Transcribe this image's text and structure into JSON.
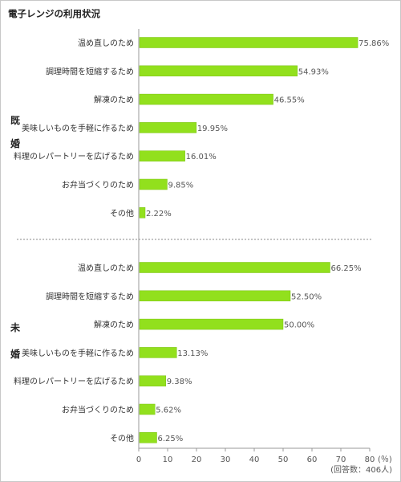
{
  "title": "電子レンジの利用状況",
  "unit_label": "(％)",
  "respondents_label": "(回答数：406人)",
  "chart_data": {
    "type": "bar",
    "orientation": "horizontal",
    "title": "電子レンジの利用状況",
    "categories": [
      "温め直しのため",
      "調理時間を短縮するため",
      "解凍のため",
      "美味しいものを手軽に作るため",
      "料理のレパートリーを広げるため",
      "お弁当づくりのため",
      "その他"
    ],
    "groups": [
      {
        "name": [
          "既",
          "婚"
        ],
        "values": [
          75.86,
          54.93,
          46.55,
          19.95,
          16.01,
          9.85,
          2.22
        ],
        "labels": [
          "75.86%",
          "54.93%",
          "46.55%",
          "19.95%",
          "16.01%",
          "9.85%",
          "2.22%"
        ]
      },
      {
        "name": [
          "未",
          "婚"
        ],
        "values": [
          66.25,
          52.5,
          50.0,
          13.13,
          9.38,
          5.62,
          6.25
        ],
        "labels": [
          "66.25%",
          "52.50%",
          "50.00%",
          "13.13%",
          "9.38%",
          "5.62%",
          "6.25%"
        ]
      }
    ],
    "xlim": [
      0,
      80
    ],
    "xticks": [
      0,
      10,
      20,
      30,
      40,
      50,
      60,
      70,
      80
    ],
    "grid": false,
    "bar_color": "#92e01d",
    "bar_border": "#7ac211"
  }
}
